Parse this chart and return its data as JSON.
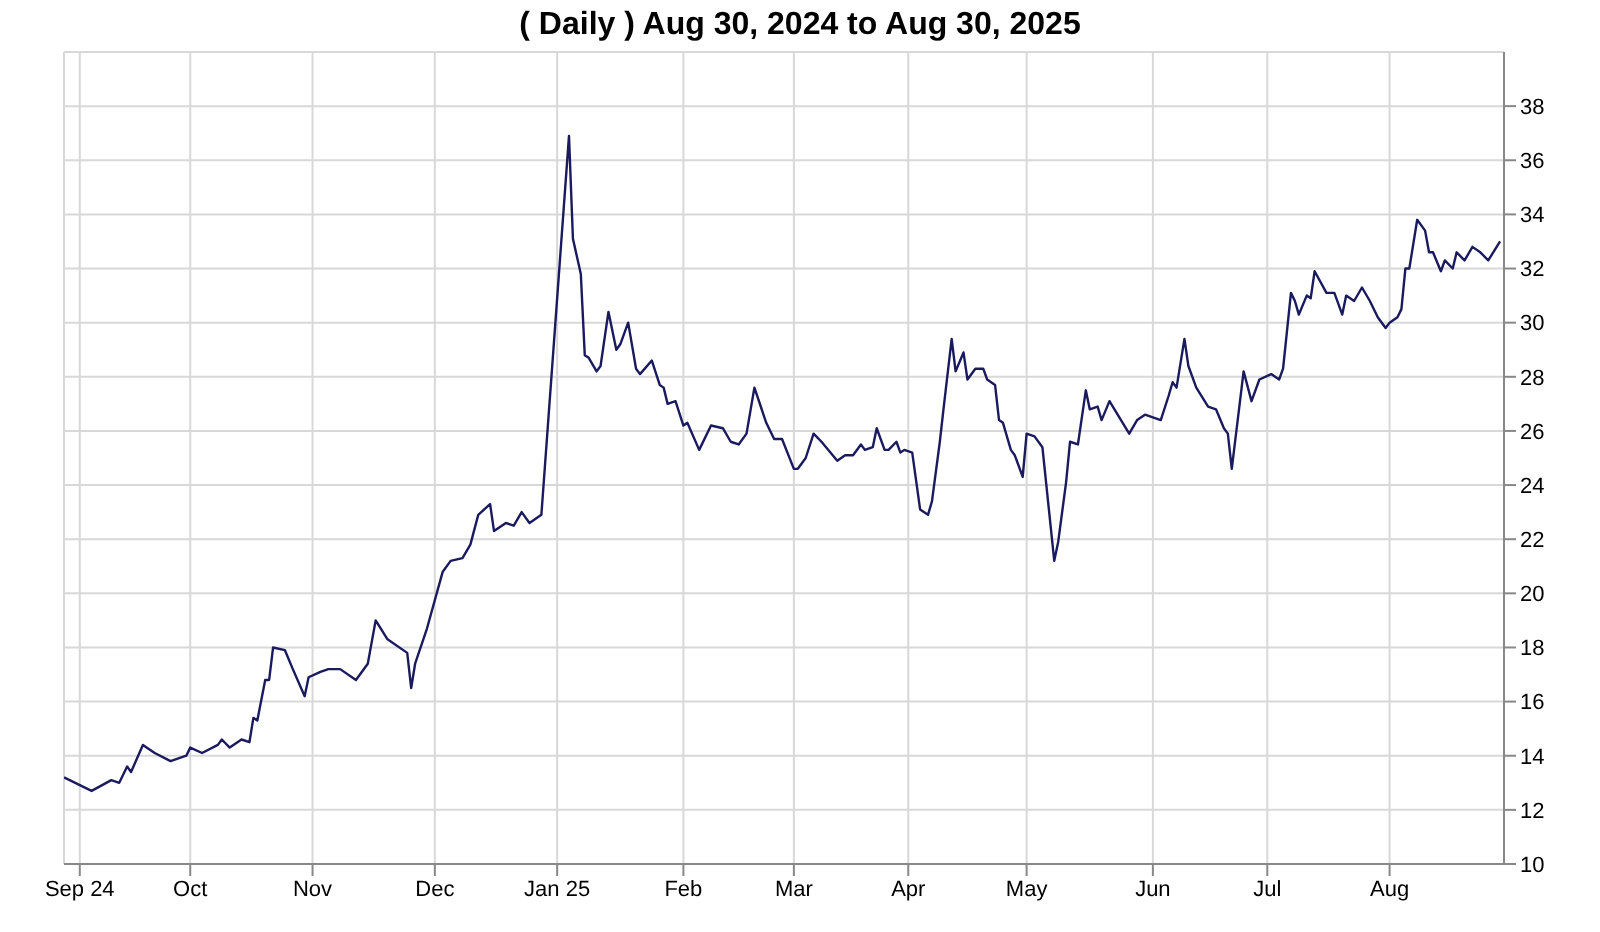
{
  "chart_data": {
    "type": "line",
    "title": "( Daily ) Aug 30, 2024 to Aug 30, 2025",
    "x": [
      "2024-08-30",
      "2024-09-06",
      "2024-09-11",
      "2024-09-13",
      "2024-09-15",
      "2024-09-16",
      "2024-09-19",
      "2024-09-22",
      "2024-09-26",
      "2024-09-30",
      "2024-10-01",
      "2024-10-04",
      "2024-10-08",
      "2024-10-09",
      "2024-10-11",
      "2024-10-14",
      "2024-10-16",
      "2024-10-17",
      "2024-10-18",
      "2024-10-20",
      "2024-10-21",
      "2024-10-22",
      "2024-10-25",
      "2024-10-27",
      "2024-10-30",
      "2024-10-31",
      "2024-11-03",
      "2024-11-05",
      "2024-11-08",
      "2024-11-12",
      "2024-11-15",
      "2024-11-17",
      "2024-11-20",
      "2024-11-25",
      "2024-11-26",
      "2024-11-27",
      "2024-11-30",
      "2024-12-04",
      "2024-12-06",
      "2024-12-09",
      "2024-12-11",
      "2024-12-13",
      "2024-12-16",
      "2024-12-17",
      "2024-12-20",
      "2024-12-22",
      "2024-12-24",
      "2024-12-26",
      "2024-12-29",
      "2025-01-05",
      "2025-01-06",
      "2025-01-08",
      "2025-01-09",
      "2025-01-10",
      "2025-01-12",
      "2025-01-13",
      "2025-01-15",
      "2025-01-17",
      "2025-01-18",
      "2025-01-20",
      "2025-01-22",
      "2025-01-23",
      "2025-01-26",
      "2025-01-28",
      "2025-01-29",
      "2025-01-30",
      "2025-02-01",
      "2025-02-03",
      "2025-02-04",
      "2025-02-07",
      "2025-02-10",
      "2025-02-13",
      "2025-02-15",
      "2025-02-17",
      "2025-02-19",
      "2025-02-21",
      "2025-02-24",
      "2025-02-26",
      "2025-02-28",
      "2025-03-03",
      "2025-03-04",
      "2025-03-06",
      "2025-03-08",
      "2025-03-10",
      "2025-03-14",
      "2025-03-16",
      "2025-03-18",
      "2025-03-20",
      "2025-03-21",
      "2025-03-23",
      "2025-03-24",
      "2025-03-26",
      "2025-03-27",
      "2025-03-29",
      "2025-03-30",
      "2025-03-31",
      "2025-04-02",
      "2025-04-04",
      "2025-04-06",
      "2025-04-07",
      "2025-04-09",
      "2025-04-10",
      "2025-04-12",
      "2025-04-13",
      "2025-04-15",
      "2025-04-16",
      "2025-04-18",
      "2025-04-20",
      "2025-04-21",
      "2025-04-23",
      "2025-04-24",
      "2025-04-25",
      "2025-04-27",
      "2025-04-28",
      "2025-04-30",
      "2025-05-01",
      "2025-05-03",
      "2025-05-05",
      "2025-05-08",
      "2025-05-09",
      "2025-05-11",
      "2025-05-12",
      "2025-05-14",
      "2025-05-16",
      "2025-05-17",
      "2025-05-19",
      "2025-05-20",
      "2025-05-22",
      "2025-05-27",
      "2025-05-29",
      "2025-05-31",
      "2025-06-04",
      "2025-06-06",
      "2025-06-07",
      "2025-06-08",
      "2025-06-10",
      "2025-06-11",
      "2025-06-13",
      "2025-06-16",
      "2025-06-18",
      "2025-06-20",
      "2025-06-21",
      "2025-06-22",
      "2025-06-25",
      "2025-06-27",
      "2025-06-29",
      "2025-07-02",
      "2025-07-04",
      "2025-07-05",
      "2025-07-07",
      "2025-07-08",
      "2025-07-09",
      "2025-07-11",
      "2025-07-12",
      "2025-07-13",
      "2025-07-16",
      "2025-07-18",
      "2025-07-20",
      "2025-07-21",
      "2025-07-23",
      "2025-07-25",
      "2025-07-27",
      "2025-07-29",
      "2025-07-31",
      "2025-08-01",
      "2025-08-03",
      "2025-08-04",
      "2025-08-05",
      "2025-08-06",
      "2025-08-08",
      "2025-08-10",
      "2025-08-11",
      "2025-08-12",
      "2025-08-14",
      "2025-08-15",
      "2025-08-17",
      "2025-08-18",
      "2025-08-20",
      "2025-08-22",
      "2025-08-24",
      "2025-08-26",
      "2025-08-29"
    ],
    "series": [
      {
        "color": "#1a1a5e",
        "values": [
          13.2,
          12.7,
          13.1,
          13.0,
          13.6,
          13.4,
          14.4,
          14.1,
          13.8,
          14.0,
          14.3,
          14.1,
          14.4,
          14.6,
          14.3,
          14.6,
          14.5,
          15.4,
          15.3,
          16.8,
          16.8,
          18.0,
          17.9,
          17.2,
          16.2,
          16.9,
          17.1,
          17.2,
          17.2,
          16.8,
          17.4,
          19.0,
          18.3,
          17.8,
          16.5,
          17.4,
          18.7,
          20.8,
          21.2,
          21.3,
          21.8,
          22.9,
          23.3,
          22.3,
          22.6,
          22.5,
          23.0,
          22.6,
          22.9,
          36.9,
          33.1,
          31.8,
          28.8,
          28.7,
          28.2,
          28.4,
          30.4,
          29.0,
          29.2,
          30.0,
          28.3,
          28.1,
          28.6,
          27.7,
          27.6,
          27.0,
          27.1,
          26.2,
          26.3,
          25.3,
          26.2,
          26.1,
          25.6,
          25.5,
          25.9,
          27.6,
          26.3,
          25.7,
          25.7,
          24.6,
          24.6,
          25.0,
          25.9,
          25.6,
          24.9,
          25.1,
          25.1,
          25.5,
          25.3,
          25.4,
          26.1,
          25.3,
          25.3,
          25.6,
          25.2,
          25.3,
          25.2,
          23.1,
          22.9,
          23.4,
          25.6,
          26.9,
          29.4,
          28.2,
          28.9,
          27.9,
          28.3,
          28.3,
          27.9,
          27.7,
          26.4,
          26.3,
          25.3,
          25.1,
          24.3,
          25.9,
          25.8,
          25.4,
          21.2,
          21.9,
          24.1,
          25.6,
          25.5,
          27.5,
          26.8,
          26.9,
          26.4,
          27.1,
          25.9,
          26.4,
          26.6,
          26.4,
          27.3,
          27.8,
          27.6,
          29.4,
          28.4,
          27.6,
          26.9,
          26.8,
          26.1,
          25.9,
          24.6,
          28.2,
          27.1,
          27.9,
          28.1,
          27.9,
          28.3,
          31.1,
          30.8,
          30.3,
          31.0,
          30.9,
          31.9,
          31.1,
          31.1,
          30.3,
          31.0,
          30.8,
          31.3,
          30.8,
          30.2,
          29.8,
          30.0,
          30.2,
          30.5,
          32.0,
          32.0,
          33.8,
          33.4,
          32.6,
          32.6,
          31.9,
          32.3,
          32.0,
          32.6,
          32.3,
          32.8,
          32.6,
          32.3,
          33.0
        ]
      }
    ],
    "xlim": [
      "2024-08-30",
      "2025-08-30"
    ],
    "xticks": [
      {
        "value": "2024-09-03",
        "label": "Sep 24"
      },
      {
        "value": "2024-10-01",
        "label": "Oct"
      },
      {
        "value": "2024-11-01",
        "label": "Nov"
      },
      {
        "value": "2024-12-02",
        "label": "Dec"
      },
      {
        "value": "2025-01-02",
        "label": "Jan 25"
      },
      {
        "value": "2025-02-03",
        "label": "Feb"
      },
      {
        "value": "2025-03-03",
        "label": "Mar"
      },
      {
        "value": "2025-04-01",
        "label": "Apr"
      },
      {
        "value": "2025-05-01",
        "label": "May"
      },
      {
        "value": "2025-06-02",
        "label": "Jun"
      },
      {
        "value": "2025-07-01",
        "label": "Jul"
      },
      {
        "value": "2025-08-01",
        "label": "Aug"
      }
    ],
    "ylim": [
      10,
      40
    ],
    "yticks": [
      10,
      12,
      14,
      16,
      18,
      20,
      22,
      24,
      26,
      28,
      30,
      32,
      34,
      36,
      38
    ],
    "grid": true,
    "marker": "none",
    "line_style": "solid",
    "legend": false
  }
}
